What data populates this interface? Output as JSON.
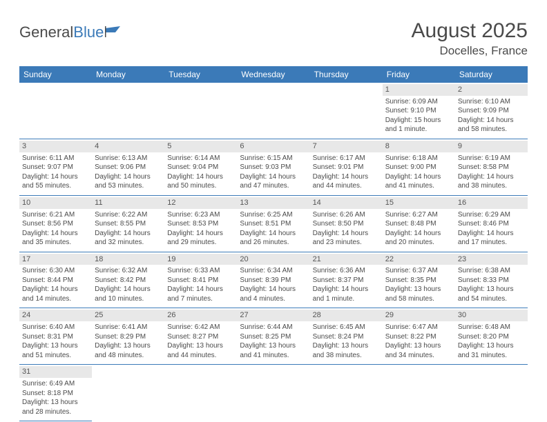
{
  "logo": {
    "part1": "General",
    "part2": "Blue"
  },
  "title": "August 2025",
  "location": "Docelles, France",
  "colors": {
    "header_bg": "#3b7ab8",
    "header_text": "#ffffff",
    "daynum_bg": "#e8e8e8",
    "text": "#4a4a4a",
    "row_border": "#3b7ab8",
    "page_bg": "#ffffff"
  },
  "fonts": {
    "title_size_pt": 22,
    "location_size_pt": 13,
    "weekday_size_pt": 9,
    "cell_size_pt": 7.5
  },
  "weekdays": [
    "Sunday",
    "Monday",
    "Tuesday",
    "Wednesday",
    "Thursday",
    "Friday",
    "Saturday"
  ],
  "weeks": [
    [
      null,
      null,
      null,
      null,
      null,
      {
        "n": "1",
        "sr": "Sunrise: 6:09 AM",
        "ss": "Sunset: 9:10 PM",
        "d1": "Daylight: 15 hours",
        "d2": "and 1 minute."
      },
      {
        "n": "2",
        "sr": "Sunrise: 6:10 AM",
        "ss": "Sunset: 9:09 PM",
        "d1": "Daylight: 14 hours",
        "d2": "and 58 minutes."
      }
    ],
    [
      {
        "n": "3",
        "sr": "Sunrise: 6:11 AM",
        "ss": "Sunset: 9:07 PM",
        "d1": "Daylight: 14 hours",
        "d2": "and 55 minutes."
      },
      {
        "n": "4",
        "sr": "Sunrise: 6:13 AM",
        "ss": "Sunset: 9:06 PM",
        "d1": "Daylight: 14 hours",
        "d2": "and 53 minutes."
      },
      {
        "n": "5",
        "sr": "Sunrise: 6:14 AM",
        "ss": "Sunset: 9:04 PM",
        "d1": "Daylight: 14 hours",
        "d2": "and 50 minutes."
      },
      {
        "n": "6",
        "sr": "Sunrise: 6:15 AM",
        "ss": "Sunset: 9:03 PM",
        "d1": "Daylight: 14 hours",
        "d2": "and 47 minutes."
      },
      {
        "n": "7",
        "sr": "Sunrise: 6:17 AM",
        "ss": "Sunset: 9:01 PM",
        "d1": "Daylight: 14 hours",
        "d2": "and 44 minutes."
      },
      {
        "n": "8",
        "sr": "Sunrise: 6:18 AM",
        "ss": "Sunset: 9:00 PM",
        "d1": "Daylight: 14 hours",
        "d2": "and 41 minutes."
      },
      {
        "n": "9",
        "sr": "Sunrise: 6:19 AM",
        "ss": "Sunset: 8:58 PM",
        "d1": "Daylight: 14 hours",
        "d2": "and 38 minutes."
      }
    ],
    [
      {
        "n": "10",
        "sr": "Sunrise: 6:21 AM",
        "ss": "Sunset: 8:56 PM",
        "d1": "Daylight: 14 hours",
        "d2": "and 35 minutes."
      },
      {
        "n": "11",
        "sr": "Sunrise: 6:22 AM",
        "ss": "Sunset: 8:55 PM",
        "d1": "Daylight: 14 hours",
        "d2": "and 32 minutes."
      },
      {
        "n": "12",
        "sr": "Sunrise: 6:23 AM",
        "ss": "Sunset: 8:53 PM",
        "d1": "Daylight: 14 hours",
        "d2": "and 29 minutes."
      },
      {
        "n": "13",
        "sr": "Sunrise: 6:25 AM",
        "ss": "Sunset: 8:51 PM",
        "d1": "Daylight: 14 hours",
        "d2": "and 26 minutes."
      },
      {
        "n": "14",
        "sr": "Sunrise: 6:26 AM",
        "ss": "Sunset: 8:50 PM",
        "d1": "Daylight: 14 hours",
        "d2": "and 23 minutes."
      },
      {
        "n": "15",
        "sr": "Sunrise: 6:27 AM",
        "ss": "Sunset: 8:48 PM",
        "d1": "Daylight: 14 hours",
        "d2": "and 20 minutes."
      },
      {
        "n": "16",
        "sr": "Sunrise: 6:29 AM",
        "ss": "Sunset: 8:46 PM",
        "d1": "Daylight: 14 hours",
        "d2": "and 17 minutes."
      }
    ],
    [
      {
        "n": "17",
        "sr": "Sunrise: 6:30 AM",
        "ss": "Sunset: 8:44 PM",
        "d1": "Daylight: 14 hours",
        "d2": "and 14 minutes."
      },
      {
        "n": "18",
        "sr": "Sunrise: 6:32 AM",
        "ss": "Sunset: 8:42 PM",
        "d1": "Daylight: 14 hours",
        "d2": "and 10 minutes."
      },
      {
        "n": "19",
        "sr": "Sunrise: 6:33 AM",
        "ss": "Sunset: 8:41 PM",
        "d1": "Daylight: 14 hours",
        "d2": "and 7 minutes."
      },
      {
        "n": "20",
        "sr": "Sunrise: 6:34 AM",
        "ss": "Sunset: 8:39 PM",
        "d1": "Daylight: 14 hours",
        "d2": "and 4 minutes."
      },
      {
        "n": "21",
        "sr": "Sunrise: 6:36 AM",
        "ss": "Sunset: 8:37 PM",
        "d1": "Daylight: 14 hours",
        "d2": "and 1 minute."
      },
      {
        "n": "22",
        "sr": "Sunrise: 6:37 AM",
        "ss": "Sunset: 8:35 PM",
        "d1": "Daylight: 13 hours",
        "d2": "and 58 minutes."
      },
      {
        "n": "23",
        "sr": "Sunrise: 6:38 AM",
        "ss": "Sunset: 8:33 PM",
        "d1": "Daylight: 13 hours",
        "d2": "and 54 minutes."
      }
    ],
    [
      {
        "n": "24",
        "sr": "Sunrise: 6:40 AM",
        "ss": "Sunset: 8:31 PM",
        "d1": "Daylight: 13 hours",
        "d2": "and 51 minutes."
      },
      {
        "n": "25",
        "sr": "Sunrise: 6:41 AM",
        "ss": "Sunset: 8:29 PM",
        "d1": "Daylight: 13 hours",
        "d2": "and 48 minutes."
      },
      {
        "n": "26",
        "sr": "Sunrise: 6:42 AM",
        "ss": "Sunset: 8:27 PM",
        "d1": "Daylight: 13 hours",
        "d2": "and 44 minutes."
      },
      {
        "n": "27",
        "sr": "Sunrise: 6:44 AM",
        "ss": "Sunset: 8:25 PM",
        "d1": "Daylight: 13 hours",
        "d2": "and 41 minutes."
      },
      {
        "n": "28",
        "sr": "Sunrise: 6:45 AM",
        "ss": "Sunset: 8:24 PM",
        "d1": "Daylight: 13 hours",
        "d2": "and 38 minutes."
      },
      {
        "n": "29",
        "sr": "Sunrise: 6:47 AM",
        "ss": "Sunset: 8:22 PM",
        "d1": "Daylight: 13 hours",
        "d2": "and 34 minutes."
      },
      {
        "n": "30",
        "sr": "Sunrise: 6:48 AM",
        "ss": "Sunset: 8:20 PM",
        "d1": "Daylight: 13 hours",
        "d2": "and 31 minutes."
      }
    ],
    [
      {
        "n": "31",
        "sr": "Sunrise: 6:49 AM",
        "ss": "Sunset: 8:18 PM",
        "d1": "Daylight: 13 hours",
        "d2": "and 28 minutes."
      },
      null,
      null,
      null,
      null,
      null,
      null
    ]
  ]
}
